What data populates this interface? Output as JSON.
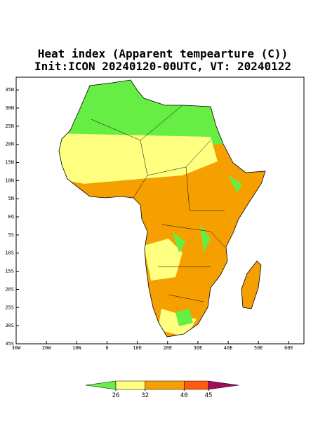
{
  "map": {
    "title": [
      "Heat index (Apparent tempearture (C))",
      "Init:ICON 20240120-00UTC, VT: 20240122"
    ],
    "lon_range": [
      -30,
      65
    ],
    "lat_range": [
      -35,
      38.5
    ],
    "lat_ticks": [
      {
        "value": 35,
        "label": "35N"
      },
      {
        "value": 30,
        "label": "30N"
      },
      {
        "value": 25,
        "label": "25N"
      },
      {
        "value": 20,
        "label": "20N"
      },
      {
        "value": 15,
        "label": "15N"
      },
      {
        "value": 10,
        "label": "10N"
      },
      {
        "value": 5,
        "label": "5N"
      },
      {
        "value": 0,
        "label": "EQ"
      },
      {
        "value": -5,
        "label": "5S"
      },
      {
        "value": -10,
        "label": "10S"
      },
      {
        "value": -15,
        "label": "15S"
      },
      {
        "value": -20,
        "label": "20S"
      },
      {
        "value": -25,
        "label": "25S"
      },
      {
        "value": -30,
        "label": "30S"
      },
      {
        "value": -35,
        "label": "35S"
      }
    ],
    "lon_ticks": [
      {
        "value": -30,
        "label": "30W"
      },
      {
        "value": -20,
        "label": "20W"
      },
      {
        "value": -10,
        "label": "10W"
      },
      0,
      {
        "value": 10,
        "label": "10E"
      },
      {
        "value": 20,
        "label": "20E"
      },
      {
        "value": 30,
        "label": "30E"
      },
      {
        "value": 40,
        "label": "40E"
      },
      {
        "value": 50,
        "label": "50E"
      },
      {
        "value": 60,
        "label": "60E"
      }
    ],
    "colorbar": {
      "levels": [
        26,
        32,
        40,
        45
      ],
      "colors": [
        "#66ee44",
        "#ffff80",
        "#f5a000",
        "#ff5a10",
        "#a0105a"
      ]
    }
  }
}
